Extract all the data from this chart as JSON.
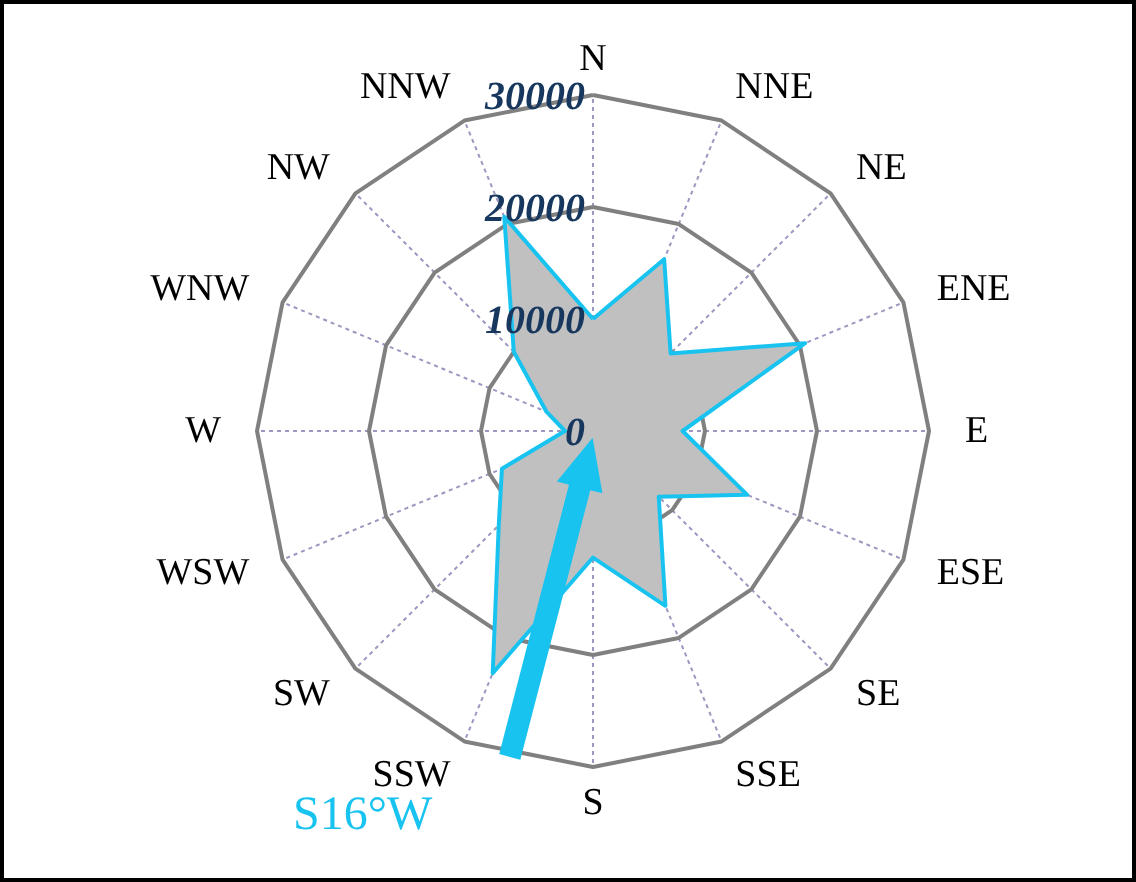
{
  "chart_data": {
    "type": "radar",
    "categories": [
      "N",
      "NNE",
      "NE",
      "ENE",
      "E",
      "ESE",
      "SE",
      "SSE",
      "S",
      "SSW",
      "SW",
      "WSW",
      "W",
      "WNW",
      "NW",
      "NNW"
    ],
    "series": [
      {
        "color": "#19c3f0",
        "values": [
          10000,
          16600,
          9800,
          20500,
          8000,
          14900,
          8300,
          16900,
          11300,
          23400,
          11900,
          8800,
          2500,
          4500,
          10000,
          20700
        ]
      }
    ],
    "ylim": [
      0,
      30000
    ],
    "yticks": [
      0,
      10000,
      20000,
      30000
    ],
    "grid": true,
    "annotations": [
      "S16°W"
    ]
  }
}
